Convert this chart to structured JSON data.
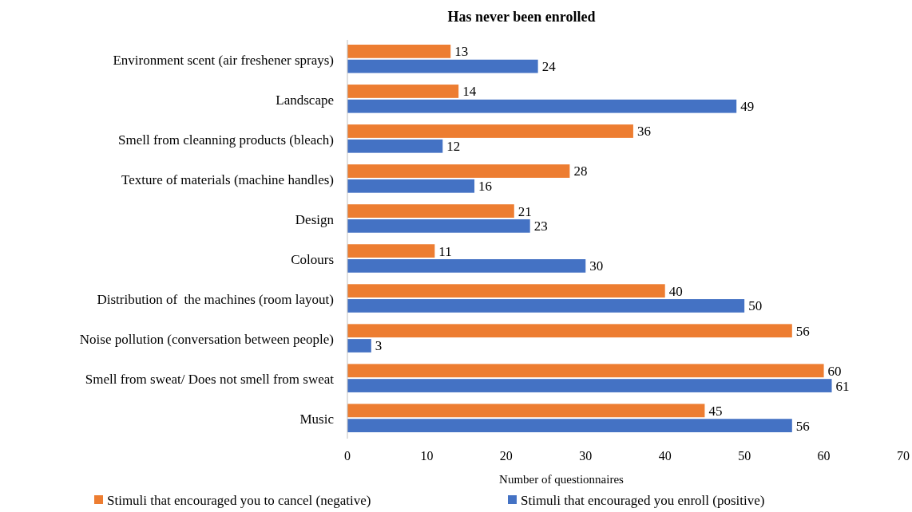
{
  "chart_data": {
    "type": "bar",
    "orientation": "horizontal",
    "title": "Has never been enrolled",
    "xlabel": "Number of questionnaires",
    "categories": [
      "Environment scent (air freshener sprays)",
      "Landscape",
      "Smell from cleanning products (bleach)",
      "Texture of materials (machine handles)",
      "Design",
      "Colours",
      "Distribution of  the machines (room layout)",
      "Noise pollution (conversation between people)",
      "Smell from sweat/ Does not smell from sweat",
      "Music"
    ],
    "series": [
      {
        "name": "Stimuli that encouraged you to cancel (negative)",
        "color": "#ed7d31",
        "values": [
          13,
          14,
          36,
          28,
          21,
          11,
          40,
          56,
          60,
          45
        ]
      },
      {
        "name": "Stimuli that encouraged you enroll (positive)",
        "color": "#4472c4",
        "values": [
          24,
          49,
          12,
          16,
          23,
          30,
          50,
          3,
          61,
          56
        ]
      }
    ],
    "xlim": [
      0,
      70
    ],
    "xticks": [
      0,
      10,
      20,
      30,
      40,
      50,
      60,
      70
    ],
    "grid": false,
    "legend": "bottom",
    "data_labels": true
  }
}
